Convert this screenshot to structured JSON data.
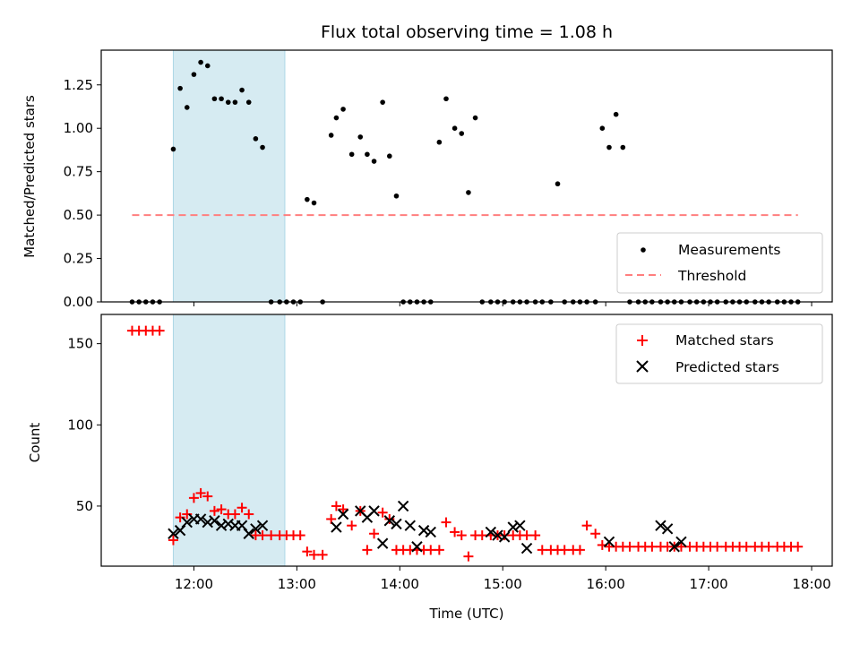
{
  "colors": {
    "measurement": "#000000",
    "threshold": "#ff7f7f",
    "matched": "#ff0000",
    "predicted": "#000000",
    "span": "#add8e6"
  },
  "chart_data": [
    {
      "type": "scatter",
      "title": "Flux total observing time = 1.08 h",
      "xlabel": "",
      "ylabel": "Matched/Predicted stars",
      "ylim": [
        0,
        1.45
      ],
      "yticks": [
        "0.00",
        "0.25",
        "0.50",
        "0.75",
        "1.00",
        "1.25"
      ],
      "xlim": [
        "11:06",
        "18:12"
      ],
      "highlight_span": [
        "11:48",
        "12:53"
      ],
      "legend": {
        "placement": "lower right",
        "entries": [
          "Measurements",
          "Threshold"
        ]
      },
      "series": [
        {
          "name": "Measurements",
          "x": [
            "11:24",
            "11:28",
            "11:32",
            "11:36",
            "11:40",
            "11:48",
            "11:52",
            "11:56",
            "12:00",
            "12:04",
            "12:08",
            "12:12",
            "12:16",
            "12:20",
            "12:24",
            "12:28",
            "12:32",
            "12:36",
            "12:40",
            "12:45",
            "12:50",
            "12:54",
            "12:58",
            "13:02",
            "13:06",
            "13:10",
            "13:15",
            "13:20",
            "13:23",
            "13:27",
            "13:32",
            "13:37",
            "13:41",
            "13:45",
            "13:50",
            "13:54",
            "13:58",
            "14:02",
            "14:06",
            "14:10",
            "14:14",
            "14:18",
            "14:23",
            "14:27",
            "14:32",
            "14:36",
            "14:40",
            "14:44",
            "14:48",
            "14:53",
            "14:57",
            "15:01",
            "15:06",
            "15:10",
            "15:14",
            "15:19",
            "15:23",
            "15:28",
            "15:32",
            "15:36",
            "15:41",
            "15:45",
            "15:49",
            "15:54",
            "15:58",
            "16:02",
            "16:06",
            "16:10",
            "16:14",
            "16:19",
            "16:23",
            "16:27",
            "16:32",
            "16:36",
            "16:40",
            "16:44",
            "16:49",
            "16:53",
            "16:57",
            "17:01",
            "17:05",
            "17:10",
            "17:14",
            "17:18",
            "17:22",
            "17:27",
            "17:31",
            "17:35",
            "17:40",
            "17:44",
            "17:48",
            "17:52"
          ],
          "y": [
            0,
            0,
            0,
            0,
            0,
            0.88,
            1.23,
            1.12,
            1.31,
            1.38,
            1.36,
            1.17,
            1.17,
            1.15,
            1.15,
            1.22,
            1.15,
            0.94,
            0.89,
            0,
            0,
            0,
            0,
            0,
            0.59,
            0.57,
            0,
            0.96,
            1.06,
            1.11,
            0.85,
            0.95,
            0.85,
            0.81,
            1.15,
            0.84,
            0.61,
            0,
            0,
            0,
            0,
            0,
            0.92,
            1.17,
            1.0,
            0.97,
            0.63,
            1.06,
            0,
            0,
            0,
            0,
            0,
            0,
            0,
            0,
            0,
            0,
            0.68,
            0,
            0,
            0,
            0,
            0,
            1.0,
            0.89,
            1.08,
            0.89,
            0,
            0,
            0,
            0,
            0,
            0,
            0,
            0,
            0,
            0,
            0,
            0,
            0,
            0,
            0,
            0,
            0,
            0,
            0,
            0,
            0,
            0,
            0,
            0
          ]
        },
        {
          "name": "Threshold",
          "x": [
            "11:24",
            "17:52"
          ],
          "y": [
            0.5,
            0.5
          ]
        }
      ]
    },
    {
      "type": "scatter",
      "xlabel": "Time (UTC)",
      "ylabel": "Count",
      "ylim": [
        13,
        168
      ],
      "yticks": [
        "50",
        "100",
        "150"
      ],
      "xticks": [
        "12:00",
        "13:00",
        "14:00",
        "15:00",
        "16:00",
        "17:00",
        "18:00"
      ],
      "xlim": [
        "11:06",
        "18:12"
      ],
      "highlight_span": [
        "11:48",
        "12:53"
      ],
      "legend": {
        "placement": "upper right",
        "entries": [
          "Matched stars",
          "Predicted stars"
        ]
      },
      "series": [
        {
          "name": "Matched stars",
          "x": [
            "11:24",
            "11:28",
            "11:32",
            "11:36",
            "11:40",
            "11:48",
            "11:52",
            "11:56",
            "12:00",
            "12:04",
            "12:08",
            "12:12",
            "12:16",
            "12:20",
            "12:24",
            "12:28",
            "12:32",
            "12:36",
            "12:40",
            "12:45",
            "12:50",
            "12:54",
            "12:58",
            "13:02",
            "13:06",
            "13:10",
            "13:15",
            "13:20",
            "13:23",
            "13:27",
            "13:32",
            "13:37",
            "13:41",
            "13:45",
            "13:50",
            "13:54",
            "13:58",
            "14:02",
            "14:06",
            "14:10",
            "14:14",
            "14:18",
            "14:23",
            "14:27",
            "14:32",
            "14:36",
            "14:40",
            "14:44",
            "14:48",
            "14:53",
            "14:57",
            "15:01",
            "15:06",
            "15:10",
            "15:14",
            "15:19",
            "15:23",
            "15:28",
            "15:32",
            "15:36",
            "15:41",
            "15:45",
            "15:49",
            "15:54",
            "15:58",
            "16:02",
            "16:06",
            "16:10",
            "16:14",
            "16:19",
            "16:23",
            "16:27",
            "16:32",
            "16:36",
            "16:40",
            "16:44",
            "16:49",
            "16:53",
            "16:57",
            "17:01",
            "17:05",
            "17:10",
            "17:14",
            "17:18",
            "17:22",
            "17:27",
            "17:31",
            "17:35",
            "17:40",
            "17:44",
            "17:48",
            "17:52"
          ],
          "y": [
            158,
            158,
            158,
            158,
            158,
            29,
            43,
            45,
            55,
            58,
            56,
            47,
            48,
            45,
            45,
            49,
            45,
            32,
            32,
            32,
            32,
            32,
            32,
            32,
            22,
            20,
            20,
            42,
            50,
            48,
            38,
            47,
            23,
            33,
            46,
            42,
            23,
            23,
            23,
            23,
            23,
            23,
            23,
            40,
            34,
            32,
            19,
            32,
            32,
            32,
            32,
            32,
            32,
            32,
            32,
            32,
            23,
            23,
            23,
            23,
            23,
            23,
            38,
            33,
            26,
            25,
            25,
            25,
            25,
            25,
            25,
            25,
            25,
            25,
            25,
            25,
            25,
            25,
            25,
            25,
            25,
            25,
            25,
            25,
            25,
            25,
            25,
            25,
            25,
            25,
            25,
            25
          ]
        },
        {
          "name": "Predicted stars",
          "x": [
            "11:48",
            "11:52",
            "11:56",
            "12:00",
            "12:04",
            "12:08",
            "12:12",
            "12:16",
            "12:20",
            "12:24",
            "12:28",
            "12:32",
            "12:36",
            "12:40",
            "13:23",
            "13:27",
            "13:37",
            "13:41",
            "13:45",
            "13:50",
            "13:54",
            "13:58",
            "14:02",
            "14:06",
            "14:10",
            "14:14",
            "14:18",
            "14:53",
            "14:57",
            "15:01",
            "15:06",
            "15:10",
            "15:14",
            "16:02",
            "16:32",
            "16:36",
            "16:40",
            "16:44"
          ],
          "y": [
            33,
            35,
            40,
            42,
            42,
            40,
            41,
            38,
            39,
            38,
            38,
            33,
            36,
            38,
            37,
            45,
            47,
            43,
            47,
            27,
            41,
            39,
            50,
            38,
            25,
            35,
            34,
            34,
            32,
            31,
            37,
            38,
            24,
            28,
            38,
            36,
            25,
            28
          ]
        }
      ]
    }
  ]
}
